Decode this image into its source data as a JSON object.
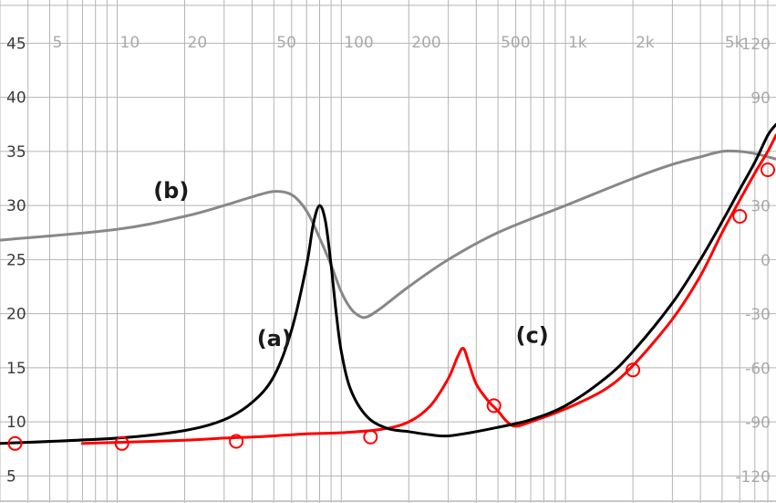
{
  "chart_data": {
    "type": "line",
    "x_scale": "log",
    "xlim": [
      3,
      8700
    ],
    "x_ticks": [
      {
        "value": 5,
        "label": "5"
      },
      {
        "value": 10,
        "label": "10"
      },
      {
        "value": 20,
        "label": "20"
      },
      {
        "value": 50,
        "label": "50"
      },
      {
        "value": 100,
        "label": "100"
      },
      {
        "value": 200,
        "label": "200"
      },
      {
        "value": 500,
        "label": "500"
      },
      {
        "value": 1000,
        "label": "1k"
      },
      {
        "value": 2000,
        "label": "2k"
      },
      {
        "value": 5000,
        "label": "5k"
      }
    ],
    "ylim": [
      2.5,
      49
    ],
    "y_ticks_left": [
      {
        "value": 45,
        "label": "45"
      },
      {
        "value": 40,
        "label": "40"
      },
      {
        "value": 35,
        "label": "35"
      },
      {
        "value": 30,
        "label": "30"
      },
      {
        "value": 25,
        "label": "25"
      },
      {
        "value": 20,
        "label": "20"
      },
      {
        "value": 15,
        "label": "15"
      },
      {
        "value": 10,
        "label": "10"
      },
      {
        "value": 5,
        "label": "5"
      }
    ],
    "y2lim": [
      -134.7,
      144.3
    ],
    "y_ticks_right": [
      {
        "value": 120,
        "label": "120"
      },
      {
        "value": 90,
        "label": "90"
      },
      {
        "value": 30,
        "label": "30"
      },
      {
        "value": 0,
        "label": "0"
      },
      {
        "value": -30,
        "label": "-30"
      },
      {
        "value": -60,
        "label": "-60"
      },
      {
        "value": -90,
        "label": "-90"
      },
      {
        "value": -120,
        "label": "-120"
      }
    ],
    "grid": true,
    "colors": {
      "grid": "#b4b4b4",
      "a": "#000000",
      "b": "#888888",
      "c": "#ff0000"
    },
    "annotations": [
      {
        "text": "(a)",
        "x": 42,
        "y": 17
      },
      {
        "text": "(b)",
        "x": 14.5,
        "y": 30.7
      },
      {
        "text": "(c)",
        "x": 600,
        "y": 17.3
      }
    ],
    "series": [
      {
        "id": "a",
        "x": [
          3,
          10,
          20,
          30,
          40,
          50,
          60,
          70,
          75,
          80,
          85,
          90,
          95,
          100,
          110,
          130,
          160,
          200,
          250,
          300,
          400,
          500,
          700,
          1000,
          1500,
          2000,
          3000,
          4000,
          5000,
          6000,
          7000,
          8000,
          8700
        ],
        "y": [
          8.0,
          8.5,
          9.2,
          10.2,
          11.8,
          14.2,
          18.5,
          24.5,
          28.3,
          30.0,
          28.5,
          24.5,
          20.0,
          16.5,
          13.0,
          10.5,
          9.4,
          9.1,
          8.8,
          8.7,
          9.1,
          9.5,
          10.2,
          11.5,
          14.0,
          16.5,
          21.0,
          25.0,
          28.5,
          31.5,
          34.0,
          36.5,
          37.5
        ]
      },
      {
        "id": "b",
        "x": [
          3,
          10,
          20,
          30,
          40,
          50,
          60,
          70,
          80,
          90,
          100,
          110,
          120,
          130,
          150,
          200,
          300,
          500,
          1000,
          2000,
          3000,
          4000,
          5000,
          6000,
          7000,
          8000,
          8700
        ],
        "y": [
          26.8,
          27.8,
          29.0,
          30.0,
          30.8,
          31.3,
          31.0,
          29.5,
          27.0,
          24.5,
          22.0,
          20.5,
          19.8,
          19.7,
          20.5,
          22.5,
          25.0,
          27.5,
          30.0,
          32.5,
          33.8,
          34.5,
          35.0,
          35.0,
          34.8,
          34.5,
          34.3
        ]
      },
      {
        "id": "c",
        "x": [
          7,
          10,
          20,
          30,
          40,
          50,
          70,
          100,
          150,
          200,
          250,
          300,
          330,
          350,
          370,
          400,
          450,
          500,
          550,
          600,
          700,
          1000,
          1500,
          2000,
          3000,
          4000,
          5000,
          6000,
          7000,
          8000,
          8700
        ],
        "y": [
          8.0,
          8.1,
          8.3,
          8.5,
          8.6,
          8.7,
          8.9,
          9.0,
          9.3,
          10.0,
          11.5,
          14.0,
          16.0,
          16.8,
          15.5,
          13.5,
          12.0,
          11.0,
          10.0,
          9.6,
          10.0,
          11.2,
          13.0,
          15.2,
          19.5,
          23.5,
          27.5,
          30.5,
          33.0,
          35.0,
          36.5
        ],
        "markers": [
          {
            "x": 3.5,
            "y": 8.0
          },
          {
            "x": 10.5,
            "y": 8.0
          },
          {
            "x": 34,
            "y": 8.2
          },
          {
            "x": 135,
            "y": 8.6
          },
          {
            "x": 480,
            "y": 11.5
          },
          {
            "x": 2000,
            "y": 14.8
          },
          {
            "x": 6000,
            "y": 29.0
          },
          {
            "x": 8000,
            "y": 33.3
          }
        ]
      }
    ]
  }
}
